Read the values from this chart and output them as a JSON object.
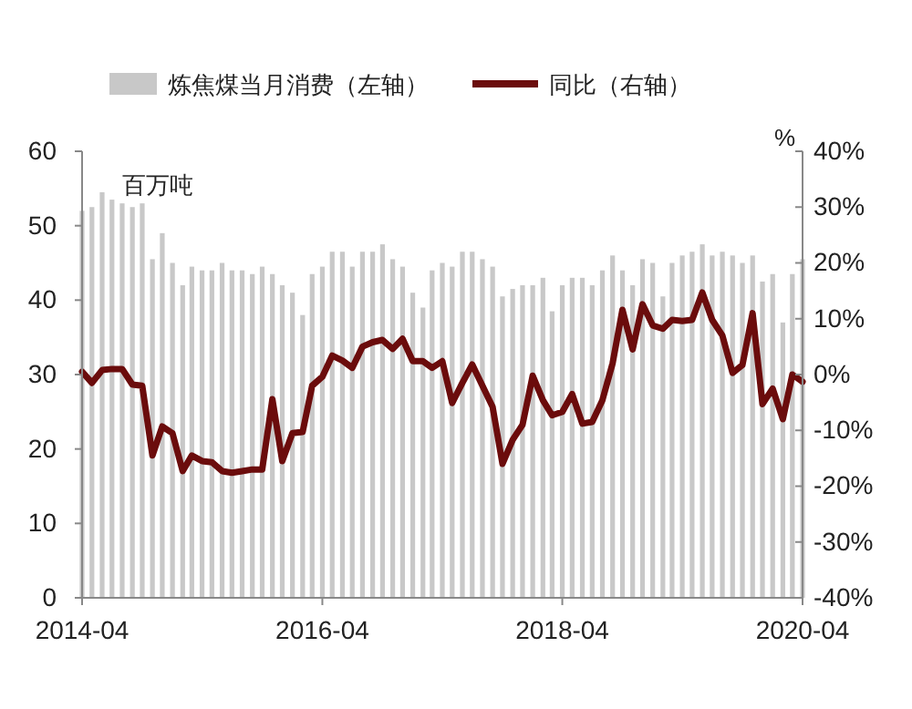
{
  "chart_data": {
    "type": "bar",
    "ylabel": "百万吨",
    "y2label": "%",
    "x": [
      "2014-04",
      "2014-05",
      "2014-06",
      "2014-07",
      "2014-08",
      "2014-09",
      "2014-10",
      "2014-11",
      "2014-12",
      "2015-01",
      "2015-02",
      "2015-03",
      "2015-04",
      "2015-05",
      "2015-06",
      "2015-07",
      "2015-08",
      "2015-09",
      "2015-10",
      "2015-11",
      "2015-12",
      "2016-01",
      "2016-02",
      "2016-03",
      "2016-04",
      "2016-05",
      "2016-06",
      "2016-07",
      "2016-08",
      "2016-09",
      "2016-10",
      "2016-11",
      "2016-12",
      "2017-01",
      "2017-02",
      "2017-03",
      "2017-04",
      "2017-05",
      "2017-06",
      "2017-07",
      "2017-08",
      "2017-09",
      "2017-10",
      "2017-11",
      "2017-12",
      "2018-01",
      "2018-02",
      "2018-03",
      "2018-04",
      "2018-05",
      "2018-06",
      "2018-07",
      "2018-08",
      "2018-09",
      "2018-10",
      "2018-11",
      "2018-12",
      "2019-01",
      "2019-02",
      "2019-03",
      "2019-04",
      "2019-05",
      "2019-06",
      "2019-07",
      "2019-08",
      "2019-09",
      "2019-10",
      "2019-11",
      "2019-12",
      "2020-01",
      "2020-02",
      "2020-03",
      "2020-04"
    ],
    "series": [
      {
        "name": "炼焦煤当月消费（左轴）",
        "color": "#c8c8c8",
        "values": [
          52,
          52.5,
          54.5,
          53.5,
          53,
          52.5,
          53,
          45.5,
          49,
          45,
          42,
          44.5,
          44,
          44,
          45,
          44,
          44,
          43.5,
          44.5,
          43.5,
          42,
          41,
          38,
          43.5,
          44.5,
          46.5,
          46.5,
          44.5,
          46.5,
          46.5,
          47.5,
          45.5,
          44.5,
          41,
          39,
          44,
          45,
          44.5,
          46.5,
          46.5,
          45.5,
          44.5,
          40.5,
          41.5,
          42,
          42,
          43,
          38.5,
          42,
          43,
          43,
          42,
          44,
          46,
          44,
          42,
          45.5,
          45,
          40.5,
          45,
          46,
          46.5,
          47.5,
          46,
          46.5,
          46,
          45,
          46,
          42.5,
          43.5,
          37,
          43.5,
          45.5
        ]
      },
      {
        "name": "同比（右轴）",
        "type": "line",
        "axis": "y2",
        "color": "#6b0c0c",
        "values": [
          0.5,
          -1.5,
          0.8,
          1,
          1,
          -1.8,
          -2,
          -14.5,
          -9.3,
          -10.5,
          -17.3,
          -14.5,
          -15.5,
          -15.7,
          -17.3,
          -17.6,
          -17.3,
          -17,
          -17,
          -4.4,
          -15.5,
          -10.5,
          -10.3,
          -2,
          -0.4,
          3.4,
          2.5,
          1.2,
          5,
          5.8,
          6.2,
          4.6,
          6.4,
          2.4,
          2.4,
          1.2,
          2.4,
          -5.1,
          -1.5,
          1.8,
          -2,
          -5.8,
          -16,
          -11.7,
          -9,
          -0.2,
          -4.6,
          -7.3,
          -6.7,
          -3.5,
          -8.8,
          -8.5,
          -4.6,
          2,
          11.6,
          4.5,
          12.6,
          8.8,
          8.2,
          9.8,
          9.6,
          9.8,
          14.7,
          9.8,
          7,
          0.3,
          1.7,
          11,
          -5.3,
          -2.5,
          -8,
          0,
          -1.3
        ]
      }
    ],
    "xlim": [
      "2014-04",
      "2020-04"
    ],
    "xticks": [
      "2014-04",
      "2016-04",
      "2018-04",
      "2020-04"
    ],
    "ylim": [
      0,
      60
    ],
    "yticks": [
      0,
      10,
      20,
      30,
      40,
      50,
      60
    ],
    "y2lim": [
      -40,
      40
    ],
    "y2ticks": [
      {
        "value": -40,
        "label": "-40%"
      },
      {
        "value": -30,
        "label": "-30%"
      },
      {
        "value": -20,
        "label": "-20%"
      },
      {
        "value": -10,
        "label": "-10%"
      },
      {
        "value": 0,
        "label": "0%"
      },
      {
        "value": 10,
        "label": "10%"
      },
      {
        "value": 20,
        "label": "20%"
      },
      {
        "value": 30,
        "label": "30%"
      },
      {
        "value": 40,
        "label": "40%"
      }
    ],
    "legend": "top",
    "grid": false
  }
}
